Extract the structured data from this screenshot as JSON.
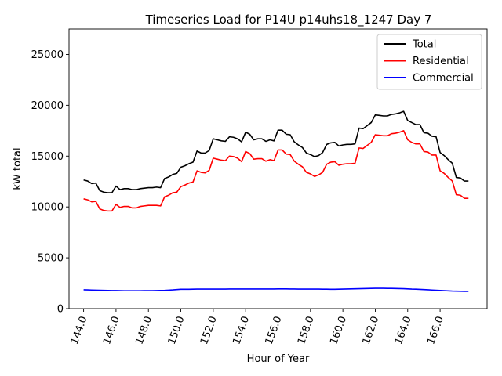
{
  "chart_data": {
    "type": "line",
    "title": "Timeseries Load for P14U p14uhs18_1247  Day 7",
    "xlabel": "Hour of Year",
    "ylabel": "kW total",
    "xlim": [
      143.1,
      168.9
    ],
    "ylim": [
      0,
      27500
    ],
    "x_ticks": [
      144,
      146,
      148,
      150,
      152,
      154,
      156,
      158,
      160,
      162,
      164,
      166
    ],
    "x_tick_labels": [
      "144.0",
      "146.0",
      "148.0",
      "150.0",
      "152.0",
      "154.0",
      "156.0",
      "158.0",
      "160.0",
      "162.0",
      "164.0",
      "166.0"
    ],
    "y_ticks": [
      0,
      5000,
      10000,
      15000,
      20000,
      25000
    ],
    "y_tick_labels": [
      "0",
      "5000",
      "10000",
      "15000",
      "20000",
      "25000"
    ],
    "legend_position": "top-right",
    "x": [
      144.0,
      144.25,
      144.5,
      144.75,
      145.0,
      145.25,
      145.5,
      145.75,
      146.0,
      146.25,
      146.5,
      146.75,
      147.0,
      147.25,
      147.5,
      147.75,
      148.0,
      148.25,
      148.5,
      148.75,
      149.0,
      149.25,
      149.5,
      149.75,
      150.0,
      150.25,
      150.5,
      150.75,
      151.0,
      151.25,
      151.5,
      151.75,
      152.0,
      152.25,
      152.5,
      152.75,
      153.0,
      153.25,
      153.5,
      153.75,
      154.0,
      154.25,
      154.5,
      154.75,
      155.0,
      155.25,
      155.5,
      155.75,
      156.0,
      156.25,
      156.5,
      156.75,
      157.0,
      157.25,
      157.5,
      157.75,
      158.0,
      158.25,
      158.5,
      158.75,
      159.0,
      159.25,
      159.5,
      159.75,
      160.0,
      160.25,
      160.5,
      160.75,
      161.0,
      161.25,
      161.5,
      161.75,
      162.0,
      162.25,
      162.5,
      162.75,
      163.0,
      163.25,
      163.5,
      163.75,
      164.0,
      164.25,
      164.5,
      164.75,
      165.0,
      165.25,
      165.5,
      165.75,
      166.0,
      166.25,
      166.5,
      166.75,
      167.0,
      167.25,
      167.5,
      167.75
    ],
    "series": [
      {
        "name": "Total",
        "color": "#000000",
        "values": [
          12650,
          12550,
          12300,
          12350,
          11600,
          11450,
          11400,
          11400,
          12050,
          11700,
          11800,
          11800,
          11700,
          11700,
          11800,
          11850,
          11900,
          11900,
          11950,
          11900,
          12800,
          12950,
          13200,
          13300,
          13900,
          14050,
          14250,
          14400,
          15500,
          15300,
          15300,
          15550,
          16700,
          16600,
          16500,
          16450,
          16900,
          16850,
          16700,
          16400,
          17350,
          17150,
          16600,
          16700,
          16700,
          16450,
          16600,
          16500,
          17550,
          17550,
          17150,
          17100,
          16400,
          16100,
          15850,
          15300,
          15150,
          14950,
          15050,
          15350,
          16150,
          16300,
          16350,
          16000,
          16100,
          16150,
          16150,
          16200,
          17750,
          17700,
          18000,
          18300,
          19050,
          19000,
          18950,
          18950,
          19100,
          19150,
          19250,
          19400,
          18500,
          18300,
          18100,
          18100,
          17300,
          17250,
          16950,
          16900,
          15350,
          15050,
          14650,
          14300,
          12900,
          12850,
          12550,
          12550
        ]
      },
      {
        "name": "Residential",
        "color": "#ff0000",
        "values": [
          10800,
          10700,
          10500,
          10550,
          9800,
          9650,
          9600,
          9600,
          10250,
          9950,
          10050,
          10050,
          9900,
          9900,
          10050,
          10100,
          10150,
          10150,
          10150,
          10100,
          11000,
          11150,
          11400,
          11450,
          12000,
          12150,
          12350,
          12450,
          13550,
          13400,
          13350,
          13600,
          14800,
          14700,
          14600,
          14550,
          15000,
          14950,
          14800,
          14450,
          15450,
          15250,
          14700,
          14750,
          14750,
          14500,
          14650,
          14550,
          15600,
          15600,
          15200,
          15150,
          14500,
          14200,
          13950,
          13400,
          13250,
          13000,
          13150,
          13400,
          14200,
          14400,
          14450,
          14100,
          14200,
          14250,
          14250,
          14300,
          15800,
          15750,
          16050,
          16350,
          17100,
          17050,
          17000,
          17000,
          17200,
          17250,
          17350,
          17500,
          16600,
          16350,
          16200,
          16200,
          15450,
          15400,
          15100,
          15100,
          13550,
          13300,
          12900,
          12550,
          11200,
          11150,
          10850,
          10850
        ]
      },
      {
        "name": "Commercial",
        "color": "#0000ff",
        "values": [
          1850,
          1840,
          1830,
          1820,
          1810,
          1800,
          1790,
          1780,
          1780,
          1770,
          1760,
          1760,
          1760,
          1760,
          1760,
          1770,
          1770,
          1770,
          1780,
          1790,
          1800,
          1820,
          1840,
          1870,
          1900,
          1900,
          1900,
          1910,
          1920,
          1920,
          1920,
          1920,
          1920,
          1920,
          1920,
          1920,
          1930,
          1930,
          1930,
          1930,
          1930,
          1930,
          1930,
          1930,
          1930,
          1930,
          1930,
          1930,
          1940,
          1940,
          1940,
          1930,
          1930,
          1920,
          1920,
          1920,
          1920,
          1920,
          1920,
          1910,
          1910,
          1900,
          1900,
          1910,
          1920,
          1930,
          1940,
          1950,
          1960,
          1970,
          1980,
          1990,
          2000,
          2000,
          2000,
          1990,
          1990,
          1980,
          1970,
          1960,
          1940,
          1920,
          1910,
          1890,
          1870,
          1850,
          1830,
          1810,
          1790,
          1770,
          1750,
          1730,
          1720,
          1710,
          1700,
          1700
        ]
      }
    ]
  }
}
